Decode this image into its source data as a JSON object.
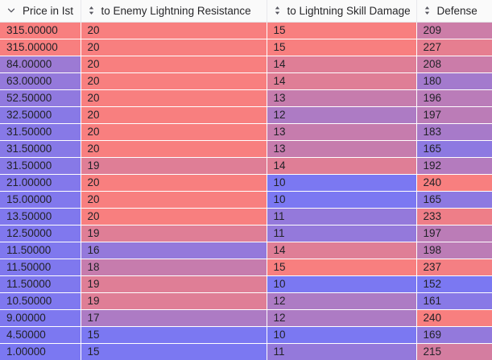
{
  "table": {
    "columns": [
      {
        "label": "Price in Ist",
        "icon": "chevron-down-icon",
        "sortable": true
      },
      {
        "label": "to Enemy Lightning Resistance",
        "icon": "sort-icon",
        "sortable": true
      },
      {
        "label": "to Lightning Skill Damage",
        "icon": "sort-icon",
        "sortable": true
      },
      {
        "label": "Defense",
        "icon": "sort-icon",
        "sortable": true
      }
    ],
    "rows": [
      [
        "315.00000",
        "20",
        "15",
        "209"
      ],
      [
        "315.00000",
        "20",
        "15",
        "227"
      ],
      [
        "84.00000",
        "20",
        "14",
        "208"
      ],
      [
        "63.00000",
        "20",
        "14",
        "180"
      ],
      [
        "52.50000",
        "20",
        "13",
        "196"
      ],
      [
        "32.50000",
        "20",
        "12",
        "197"
      ],
      [
        "31.50000",
        "20",
        "13",
        "183"
      ],
      [
        "31.50000",
        "20",
        "13",
        "165"
      ],
      [
        "31.50000",
        "19",
        "14",
        "192"
      ],
      [
        "21.00000",
        "20",
        "10",
        "240"
      ],
      [
        "15.00000",
        "20",
        "10",
        "165"
      ],
      [
        "13.50000",
        "20",
        "11",
        "233"
      ],
      [
        "12.50000",
        "19",
        "11",
        "197"
      ],
      [
        "11.50000",
        "16",
        "14",
        "198"
      ],
      [
        "11.50000",
        "18",
        "15",
        "237"
      ],
      [
        "11.50000",
        "19",
        "10",
        "152"
      ],
      [
        "10.50000",
        "19",
        "12",
        "161"
      ],
      [
        "9.00000",
        "17",
        "12",
        "240"
      ],
      [
        "4.50000",
        "15",
        "10",
        "169"
      ],
      [
        "1.00000",
        "15",
        "11",
        "215"
      ]
    ]
  },
  "heatmap": {
    "low_color": "#7b78f2",
    "high_color": "#f87f7f",
    "note": "per-column linear scale: column min = low_color (blue), column max = high_color (red)"
  },
  "icon_color": "#55555e"
}
